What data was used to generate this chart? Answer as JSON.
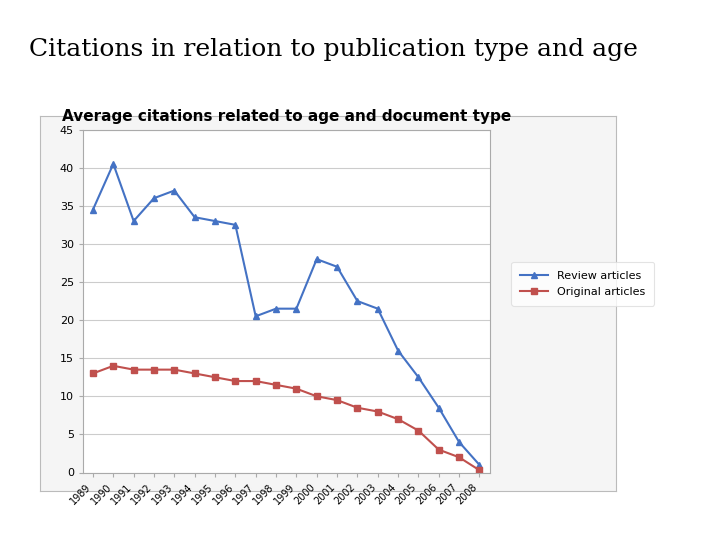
{
  "title": "Citations in relation to publication type and age",
  "chart_title": "Average citations related to age and document type",
  "years": [
    "1989",
    "1990",
    "1991",
    "1992",
    "1993",
    "1994",
    "1995",
    "1996",
    "1997",
    "1998",
    "1999",
    "2000",
    "2001",
    "2002",
    "2003",
    "2004",
    "2005",
    "2006",
    "2007",
    "2008"
  ],
  "review_articles": [
    34.5,
    40.5,
    33.0,
    36.0,
    37.0,
    33.5,
    33.0,
    32.5,
    20.5,
    21.5,
    21.5,
    28.0,
    27.0,
    22.5,
    21.5,
    16.0,
    12.5,
    8.5,
    4.0,
    1.0
  ],
  "original_articles": [
    13.0,
    14.0,
    13.5,
    13.5,
    13.5,
    13.0,
    12.5,
    12.0,
    12.0,
    11.5,
    11.0,
    10.0,
    9.5,
    8.5,
    8.0,
    7.0,
    5.5,
    3.0,
    2.0,
    0.3
  ],
  "review_color": "#4472C4",
  "original_color": "#C0504D",
  "ylim": [
    0,
    45
  ],
  "yticks": [
    0,
    5,
    10,
    15,
    20,
    25,
    30,
    35,
    40,
    45
  ],
  "bg_color": "#FFFFFF",
  "chart_bg": "#FFFFFF",
  "olive_bar_color": "#C8C800",
  "legend_labels": [
    "Review articles",
    "Original articles"
  ],
  "title_fontsize": 18,
  "chart_title_fontsize": 11
}
